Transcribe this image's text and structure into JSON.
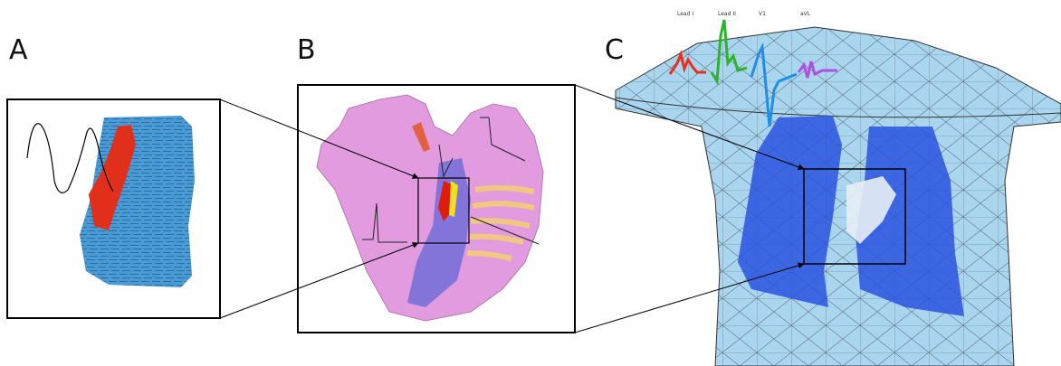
{
  "panels": [
    {
      "label": "A"
    },
    {
      "label": "B"
    },
    {
      "label": "C"
    }
  ],
  "ecg_leads": [
    "Lead I",
    "Lead II",
    "V1",
    "aVL"
  ]
}
